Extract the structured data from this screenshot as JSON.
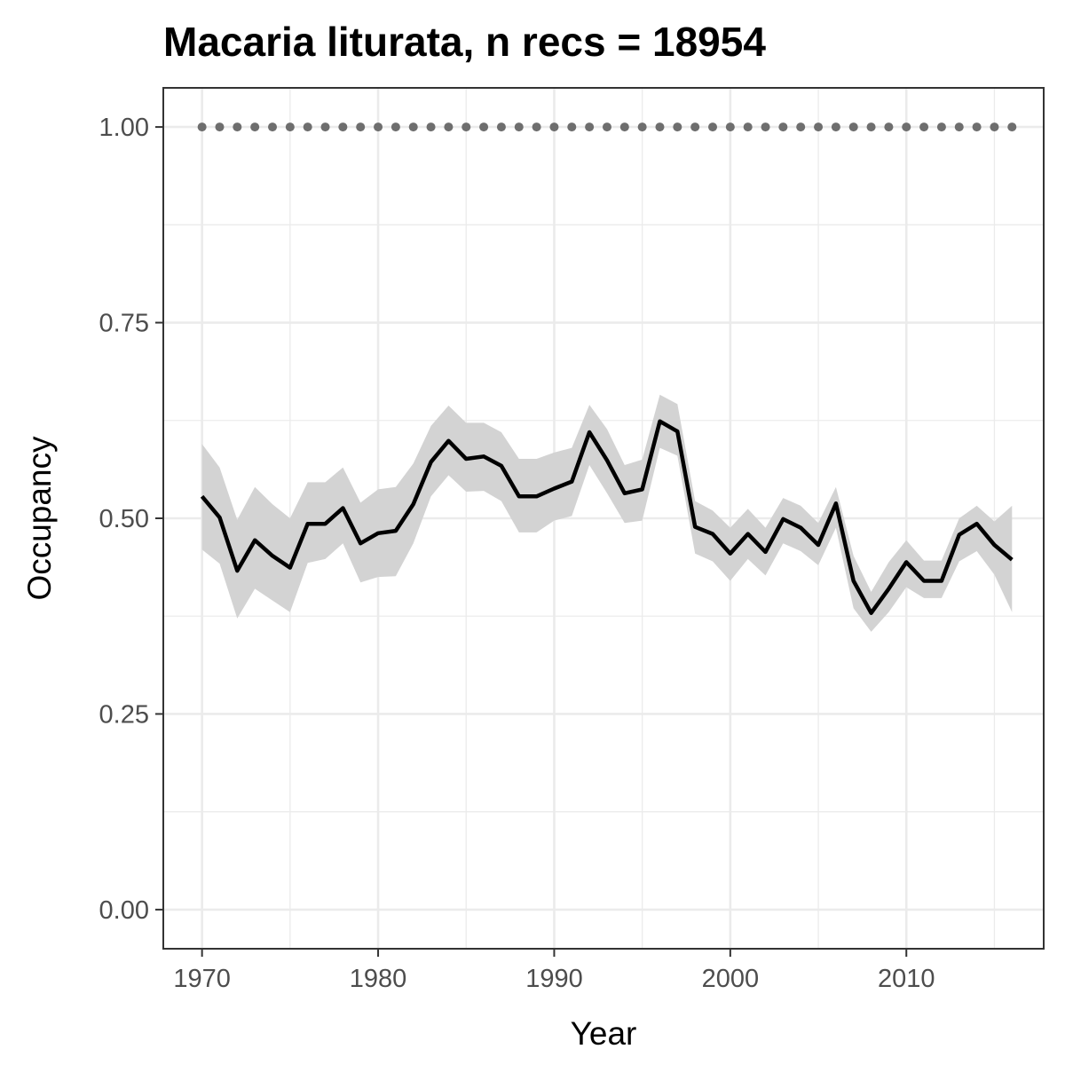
{
  "chart_data": {
    "type": "line",
    "title": "Macaria liturata, n recs = 18954",
    "xlabel": "Year",
    "ylabel": "Occupancy",
    "xlim": [
      1967.8,
      2017.8
    ],
    "ylim": [
      -0.05,
      1.05
    ],
    "x_ticks": [
      1970,
      1980,
      1990,
      2000,
      2010
    ],
    "x_tick_labels": [
      "1970",
      "1980",
      "1990",
      "2000",
      "2010"
    ],
    "y_ticks": [
      0,
      0.25,
      0.5,
      0.75,
      1.0
    ],
    "y_tick_labels": [
      "0.00",
      "0.25",
      "0.50",
      "0.75",
      "1.00"
    ],
    "grid": true,
    "colors": {
      "line": "#000000",
      "band": "#d3d3d3",
      "rhat_points": "#6e6e6e",
      "grid": "#ebebeb",
      "panel_border": "#333333"
    },
    "series": [
      {
        "x": [
          1970,
          1971,
          1972,
          1973,
          1974,
          1975,
          1976,
          1977,
          1978,
          1979,
          1980,
          1981,
          1982,
          1983,
          1984,
          1985,
          1986,
          1987,
          1988,
          1989,
          1990,
          1991,
          1992,
          1993,
          1994,
          1995,
          1996,
          1997,
          1998,
          1999,
          2000,
          2001,
          2002,
          2003,
          2004,
          2005,
          2006,
          2007,
          2008,
          2009,
          2010,
          2011,
          2012,
          2013,
          2014,
          2015,
          2016
        ],
        "y": [
          0.528,
          0.501,
          0.433,
          0.472,
          0.452,
          0.437,
          0.493,
          0.493,
          0.513,
          0.468,
          0.481,
          0.484,
          0.518,
          0.572,
          0.599,
          0.576,
          0.579,
          0.567,
          0.528,
          0.528,
          0.538,
          0.547,
          0.61,
          0.574,
          0.532,
          0.537,
          0.624,
          0.611,
          0.489,
          0.48,
          0.455,
          0.48,
          0.457,
          0.499,
          0.488,
          0.466,
          0.519,
          0.42,
          0.379,
          0.41,
          0.444,
          0.42,
          0.42,
          0.479,
          0.493,
          0.466,
          0.447
        ],
        "lower": [
          0.46,
          0.442,
          0.372,
          0.41,
          0.395,
          0.38,
          0.443,
          0.448,
          0.468,
          0.418,
          0.425,
          0.426,
          0.468,
          0.528,
          0.555,
          0.534,
          0.535,
          0.522,
          0.482,
          0.482,
          0.497,
          0.503,
          0.568,
          0.532,
          0.494,
          0.497,
          0.59,
          0.58,
          0.455,
          0.445,
          0.42,
          0.448,
          0.427,
          0.468,
          0.458,
          0.44,
          0.488,
          0.385,
          0.355,
          0.38,
          0.412,
          0.398,
          0.398,
          0.445,
          0.458,
          0.428,
          0.38
        ],
        "upper": [
          0.595,
          0.565,
          0.498,
          0.54,
          0.518,
          0.5,
          0.546,
          0.546,
          0.565,
          0.52,
          0.537,
          0.54,
          0.57,
          0.618,
          0.644,
          0.622,
          0.622,
          0.61,
          0.576,
          0.576,
          0.584,
          0.59,
          0.645,
          0.614,
          0.568,
          0.575,
          0.658,
          0.646,
          0.522,
          0.51,
          0.488,
          0.512,
          0.488,
          0.526,
          0.516,
          0.494,
          0.54,
          0.452,
          0.406,
          0.444,
          0.472,
          0.446,
          0.446,
          0.5,
          0.516,
          0.496,
          0.516
        ]
      },
      {
        "x": [
          1970,
          1971,
          1972,
          1973,
          1974,
          1975,
          1976,
          1977,
          1978,
          1979,
          1980,
          1981,
          1982,
          1983,
          1984,
          1985,
          1986,
          1987,
          1988,
          1989,
          1990,
          1991,
          1992,
          1993,
          1994,
          1995,
          1996,
          1997,
          1998,
          1999,
          2000,
          2001,
          2002,
          2003,
          2004,
          2005,
          2006,
          2007,
          2008,
          2009,
          2010,
          2011,
          2012,
          2013,
          2014,
          2015,
          2016
        ],
        "y": [
          1,
          1,
          1,
          1,
          1,
          1,
          1,
          1,
          1,
          1,
          1,
          1,
          1,
          1,
          1,
          1,
          1,
          1,
          1,
          1,
          1,
          1,
          1,
          1,
          1,
          1,
          1,
          1,
          1,
          1,
          1,
          1,
          1,
          1,
          1,
          1,
          1,
          1,
          1,
          1,
          1,
          1,
          1,
          1,
          1,
          1,
          1
        ]
      }
    ]
  }
}
